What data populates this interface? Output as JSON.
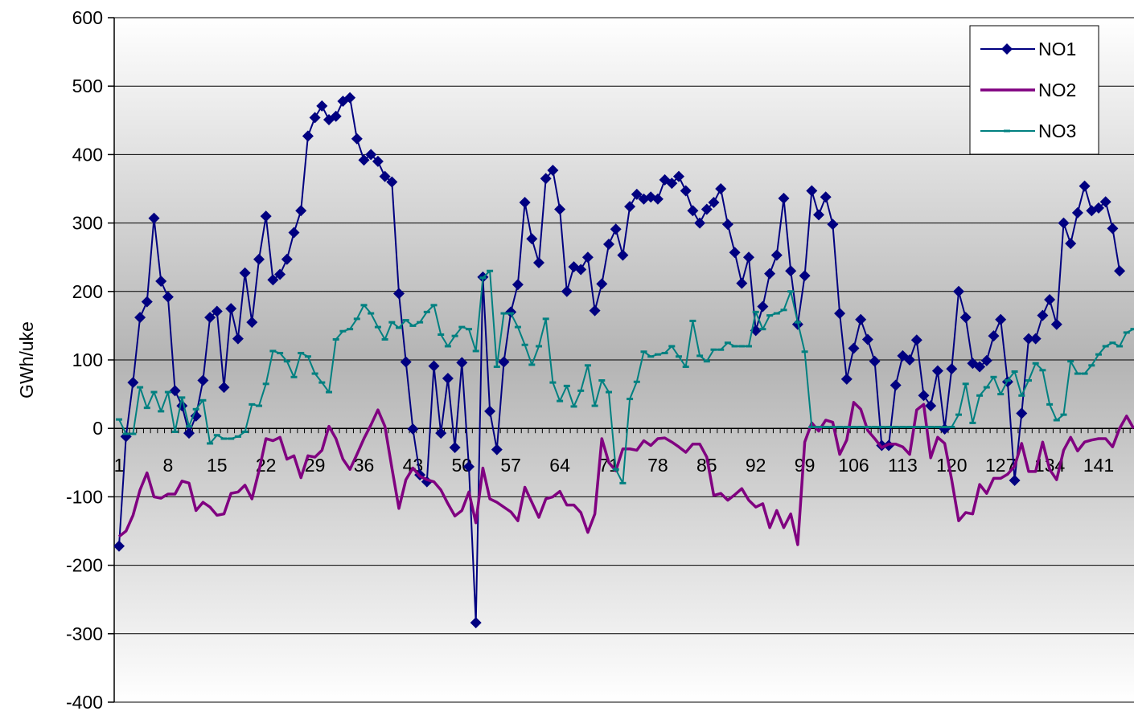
{
  "chart_data": {
    "type": "line",
    "title": "",
    "xlabel": "",
    "ylabel": "GWh/uke",
    "ylim": [
      -400,
      600
    ],
    "yticks": [
      600,
      500,
      400,
      300,
      200,
      100,
      0,
      -100,
      -200,
      -300,
      -400
    ],
    "xrange": [
      1,
      146
    ],
    "xtick_labels": [
      1,
      8,
      15,
      22,
      29,
      36,
      43,
      50,
      57,
      64,
      71,
      78,
      85,
      92,
      99,
      106,
      113,
      120,
      127,
      134,
      141
    ],
    "grid": true,
    "legend": "top-right",
    "colors": {
      "NO1": "#000080",
      "NO2": "#800080",
      "NO3": "#008080",
      "plot_top": "#ffffff",
      "plot_mid": "#b4b4b4"
    },
    "series": [
      {
        "name": "NO1",
        "marker": "diamond",
        "values": [
          -172,
          -12,
          67,
          162,
          185,
          307,
          215,
          192,
          55,
          33,
          -7,
          18,
          70,
          162,
          171,
          60,
          175,
          131,
          227,
          155,
          247,
          310,
          217,
          225,
          247,
          286,
          318,
          427,
          454,
          471,
          451,
          456,
          478,
          483,
          423,
          392,
          400,
          390,
          368,
          360,
          197,
          97,
          -1,
          -68,
          -78,
          91,
          -7,
          73,
          -28,
          96,
          -56,
          -284,
          221,
          25,
          -31,
          97,
          170,
          210,
          330,
          277,
          242,
          365,
          377,
          320,
          200,
          236,
          232,
          250,
          172,
          211,
          269,
          291,
          253,
          324,
          342,
          335,
          338,
          335,
          363,
          358,
          368,
          347,
          318,
          300,
          320,
          330,
          350,
          298,
          257,
          212,
          250,
          143,
          178,
          226,
          253,
          336,
          230,
          152,
          223,
          347,
          312,
          338,
          298,
          168,
          72,
          117,
          159,
          130,
          98,
          -25,
          -25,
          63,
          106,
          100,
          129,
          48,
          33,
          84,
          -1,
          87,
          200,
          162,
          95,
          90,
          99,
          135,
          159,
          68,
          -76,
          22,
          131,
          131,
          165,
          188,
          152,
          300,
          270,
          315,
          354,
          318,
          322,
          331,
          292,
          230
        ]
      },
      {
        "name": "NO2",
        "marker": "none",
        "values": [
          -158,
          -150,
          -127,
          -90,
          -65,
          -100,
          -102,
          -96,
          -96,
          -77,
          -80,
          -120,
          -108,
          -115,
          -127,
          -125,
          -95,
          -93,
          -83,
          -103,
          -62,
          -15,
          -18,
          -13,
          -45,
          -40,
          -72,
          -40,
          -42,
          -32,
          3,
          -15,
          -45,
          -60,
          -38,
          -15,
          5,
          27,
          3,
          -58,
          -117,
          -75,
          -58,
          -70,
          -75,
          -78,
          -90,
          -110,
          -128,
          -120,
          -93,
          -138,
          -58,
          -103,
          -108,
          -115,
          -122,
          -135,
          -86,
          -108,
          -130,
          -103,
          -100,
          -92,
          -112,
          -112,
          -123,
          -152,
          -125,
          -15,
          -50,
          -62,
          -30,
          -30,
          -32,
          -18,
          -25,
          -15,
          -14,
          -20,
          -27,
          -35,
          -23,
          -23,
          -42,
          -98,
          -95,
          -105,
          -97,
          -88,
          -105,
          -115,
          -110,
          -145,
          -120,
          -145,
          -125,
          -170,
          -20,
          8,
          -4,
          12,
          9,
          -38,
          -17,
          38,
          28,
          -3,
          -15,
          -28,
          -23,
          -23,
          -27,
          -38,
          27,
          35,
          -43,
          -13,
          -22,
          -75,
          -135,
          -123,
          -125,
          -82,
          -95,
          -73,
          -73,
          -67,
          -55,
          -22,
          -63,
          -63,
          -20,
          -60,
          -75,
          -32,
          -13,
          -33,
          -20,
          -17,
          -15,
          -15,
          -27,
          0,
          18,
          0
        ]
      },
      {
        "name": "NO3",
        "marker": "dash",
        "values": [
          13,
          -8,
          -8,
          60,
          30,
          53,
          25,
          53,
          -5,
          45,
          3,
          28,
          41,
          -22,
          -10,
          -15,
          -15,
          -12,
          -5,
          35,
          33,
          65,
          113,
          110,
          98,
          75,
          110,
          105,
          80,
          67,
          53,
          130,
          142,
          145,
          160,
          180,
          168,
          148,
          130,
          155,
          147,
          158,
          150,
          155,
          170,
          180,
          137,
          120,
          135,
          148,
          145,
          113,
          220,
          230,
          90,
          168,
          168,
          148,
          122,
          93,
          120,
          160,
          67,
          40,
          62,
          32,
          55,
          92,
          33,
          70,
          53,
          -60,
          -80,
          43,
          68,
          112,
          105,
          108,
          110,
          120,
          105,
          90,
          157,
          106,
          98,
          115,
          115,
          125,
          120,
          120,
          120,
          170,
          145,
          165,
          168,
          173,
          200,
          155,
          112,
          2,
          2,
          2,
          2,
          2,
          2,
          2,
          2,
          2,
          2,
          2,
          2,
          2,
          2,
          2,
          2,
          2,
          2,
          2,
          2,
          2,
          20,
          65,
          8,
          48,
          60,
          75,
          50,
          70,
          83,
          48,
          70,
          95,
          85,
          35,
          12,
          20,
          98,
          80,
          80,
          92,
          108,
          120,
          125,
          120,
          140,
          145
        ]
      }
    ]
  }
}
